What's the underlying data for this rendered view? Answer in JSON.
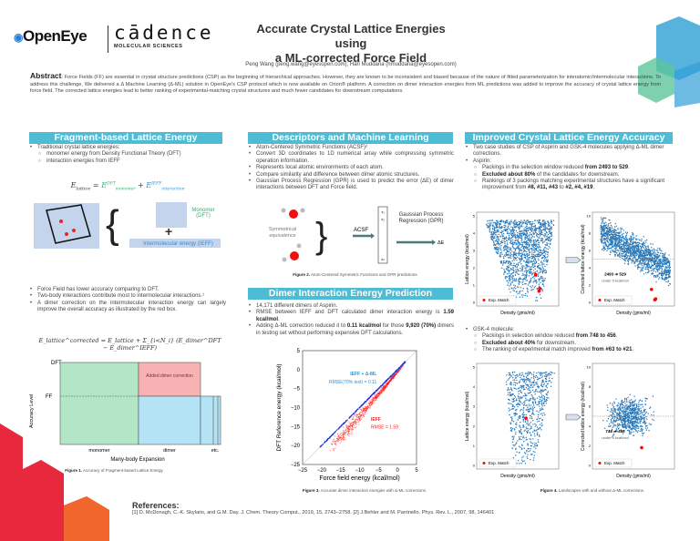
{
  "header": {
    "logo1": "OpenEye",
    "logo2": "cādence",
    "logo2_sub": "MOLECULAR SCIENCES",
    "title_line1": "Accurate Crystal Lattice Energies using",
    "title_line2": "a ML-corrected Force Field",
    "authors": "Peng Wang (peng.wang@eyesopen.com); Hari Muddana (hmuddana@eyesopen.com)"
  },
  "abstract": {
    "label": "Abstract",
    "text": ": Force Fields (FF) are essential in crystal structure predictions (CSP) as the beginning of hierarchical approaches. However, they are known to be inconsistent and biased because of the nature of fitted parameterization for interatomic/intermolecular interactions. To address this challenge, We delivered a Δ Machine Learning (Δ-ML) solution in OpenEye's CSP protocol which is now available on Orion® platform. A correction on dimer interaction energies from ML predictions was added to improve the accuracy of crystal lattice energy from force field. The corrected lattice energies lead to better ranking of experimental-matching crystal structures and much fewer candidates for downstream computations."
  },
  "col1": {
    "title": "Fragment-based Lattice Energy",
    "b1": "Traditional crystal lattice energies:",
    "b1a": "monomer energy from Density Functional Theory (DFT)",
    "b1b": "interaction energies from IEFF",
    "eq1_lhs": "E",
    "eq1_lhs_sub": "lattice",
    "eq1_t1": "E",
    "eq1_t1_sup": "DFT",
    "eq1_t1_sub": "monomer",
    "eq1_t2": "E",
    "eq1_t2_sup": "IEFF",
    "eq1_t2_sub": "interaction",
    "monomer_label": "Monomer (DFT)",
    "ieff_label": "Intermolecular energy (IEFF)",
    "b2": "Force Field has lower accuracy comparing to DFT.",
    "b3": "Two-body interactions contribute most to intermolecular interactions.¹",
    "b4": "A dimer correction on the intermolecular interaction energy can largely improve the overall accuracy as illustrated by the red box.",
    "eq2": "E_lattice^corrected = E_lattice + Σ_{i<N_i} (E_dimer^DFT − E_dimer^IEFF)",
    "fig": {
      "ylabel": "Accuracy Level",
      "xlabel": "Many-body Expansion",
      "y_dft": "DFT",
      "y_ff": "FF",
      "x_monomer": "monomer",
      "x_dimer": "dimer",
      "x_etc": "etc.",
      "box_label": "Added dimer correction",
      "colors": {
        "monomer": "#b3e6c7",
        "correction": "#f7b3b3",
        "dimer": "#b3e3f5"
      }
    },
    "caption_bold": "Figure 1.",
    "caption": " Accuracy of Fragment-based Lattice Energy"
  },
  "col2": {
    "title": "Descriptors and Machine Learning",
    "bullets": [
      "Atom-Centered Symmetric Functions (ACSF)²",
      "Convert 3D coordinates to 1D numerical array while compressing symmetric operation information.",
      "Represents local atomic environments of each atom.",
      "Compare similarity and difference between dimer atomic structures.",
      "Gaussian Process Regression (GPR) is used to predict the error (ΔE) of dimer interactions between DFT and Force field."
    ],
    "fig": {
      "sym_label": "Symmetrical equivalence",
      "acsf": "ACSF",
      "gpr": "Gaussian Process Regression (GPR)",
      "de": "ΔE",
      "vec": [
        "x₁",
        "x₂",
        "·",
        "·",
        "·",
        "·",
        "xₙ"
      ],
      "atom_o": "O",
      "atom_h": "H"
    },
    "caption_bold": "Figure 2.",
    "caption": " Atom-Centered Symmetric Functions and GPR predictions.",
    "title2": "Dimer Interaction Energy Prediction",
    "b1": "14,171 different dimers of Aspirin.",
    "b2": "RMSE between IEFF and DFT calculated dimer interaction energy is ",
    "b2_bold": "1.59 kcal/mol",
    "b3a": "Adding Δ-ML correction reduced it to ",
    "b3b": "0.11 kcal/mol",
    "b3c": " for those ",
    "b3d": "9,920 (70%)",
    "b3e": " dimers in testing set without performing expensive DFT calculations.",
    "caption2_bold": "Figure 3.",
    "caption2": " Accurate dimer interaction energies with Δ-ML corrections."
  },
  "chart_data": {
    "type": "scatter",
    "xlabel": "Force field energy (kcal/mol)",
    "ylabel": "DFT Reference energy (kcal/mol)",
    "xlim": [
      -25,
      5
    ],
    "ylim": [
      -25,
      5
    ],
    "xticks": [
      -25,
      -20,
      -15,
      -10,
      -5,
      0,
      5
    ],
    "yticks": [
      -25,
      -20,
      -15,
      -10,
      -5,
      0,
      5
    ],
    "series": [
      {
        "name": "IEFF + Δ-ML",
        "label2": "RMSE(70% test) = 0.11",
        "color": "#1f2fe0",
        "x_range": [
          -20.5,
          2
        ],
        "note": "points on y = x"
      },
      {
        "name": "IEFF",
        "label2": "RMSE = 1.59",
        "color": "#ff1a1a",
        "x_range": [
          -18.5,
          2
        ],
        "note": "points below y = x"
      }
    ]
  },
  "col3": {
    "title": "Improved Crystal Lattice Energy Accuracy",
    "b1": "Two case studies of CSP of Aspirin and GSK-4 molecules applying Δ-ML dimer corrections.",
    "b2": "Aspirin:",
    "a1": "Packings in the selection window reduced ",
    "a1b": "from 2493 to 529",
    "a2b": "Excluded about 80%",
    "a2": " of the candidates for downstream.",
    "a3": "Rankings of 3 packings matching experimental structures have a significant improvement from ",
    "a3b": "#8, #11, #43",
    "a3c": " to ",
    "a3d": "#2, #4, #19",
    "b3": "GSK-4 molecule:",
    "g1": "Packings in selection window reduced ",
    "g1b": "from 748 to 456",
    "g2b": "Excluded about 40%",
    "g2": " for downstream.",
    "g3": "The ranking of experimental match improved ",
    "g3b": "from #63 to #21",
    "plots": {
      "xlabel": "Density (gms/ml)",
      "ylabel_left": "Lattice energy (kcal/mol)",
      "ylabel_right": "Corrected lattice energy (kcal/mol)",
      "legend": "Exp. Match",
      "aspirin_note": "2493 ➔ 529",
      "gsk_note": "748 ➔ 456",
      "under": "under 5 kcal/mol",
      "left_yticks": [
        "0",
        "1",
        "2",
        "3",
        "4",
        "5"
      ],
      "right_yticks": [
        "0",
        "2",
        "4",
        "6",
        "8",
        "10"
      ],
      "point_color": "#2a78b8",
      "match_color": "#ff0000"
    },
    "caption_bold": "Figure 4.",
    "caption": " Landscapes with and without Δ-ML corrections."
  },
  "references": {
    "title": "References:",
    "text": "[1] D. McDonagh, C.-K. Skylaris, and G.M. Day. J. Chem. Theory Comput., 2019, 15, 2743−2758.  [2] J.Behler and M. Parrinello. Phys. Rev. L., 2007, 98, 146401"
  }
}
